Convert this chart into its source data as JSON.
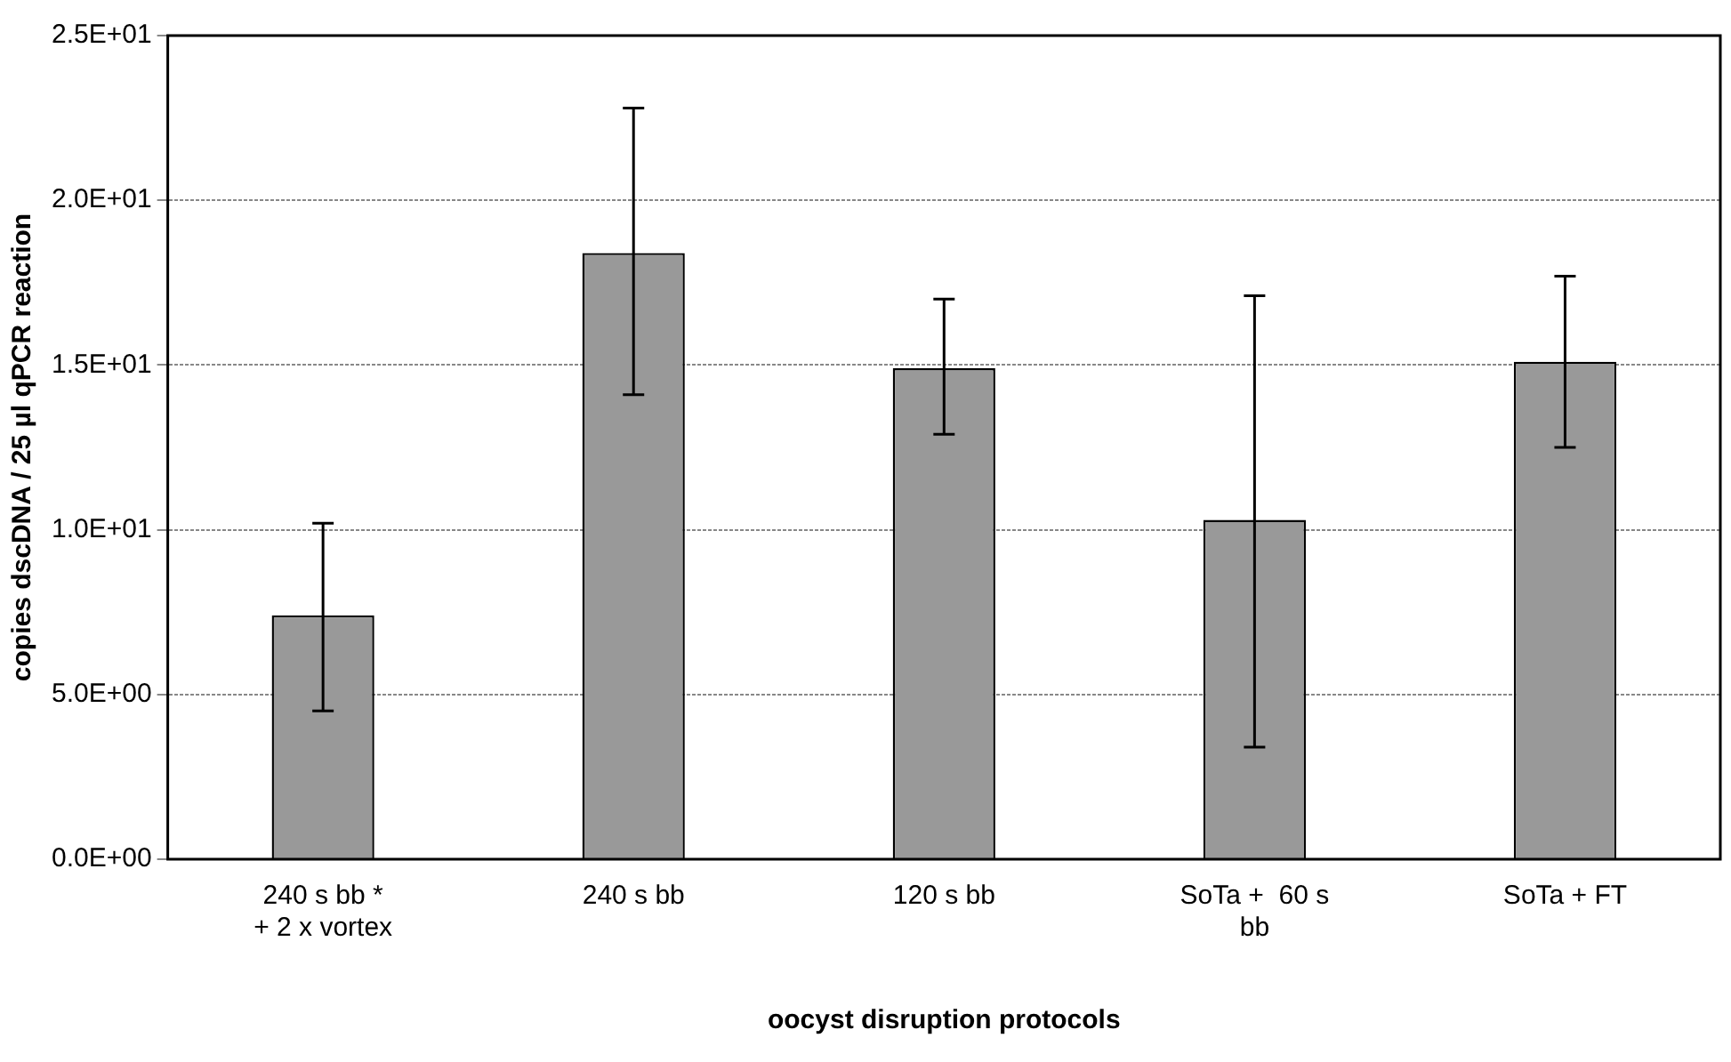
{
  "chart_data": {
    "type": "bar",
    "xlabel": "oocyst disruption protocols",
    "ylabel": "copies dscDNA / 25 µl qPCR reaction",
    "categories": [
      "240 s bb *\n+ 2 x vortex",
      "240 s bb",
      "120 s bb",
      "SoTa +  60 s\nbb",
      "SoTa + FT"
    ],
    "values": [
      7.4,
      18.4,
      14.9,
      10.3,
      15.1
    ],
    "color": "#999999",
    "errors": [
      [
        4.5,
        10.2
      ],
      [
        14.1,
        22.8
      ],
      [
        12.9,
        17.0
      ],
      [
        3.4,
        17.1
      ],
      [
        12.5,
        17.7
      ]
    ],
    "ylim": [
      0,
      25
    ],
    "yticks": [
      {
        "value": 0,
        "label": "0.0E+00"
      },
      {
        "value": 5,
        "label": "5.0E+00"
      },
      {
        "value": 10,
        "label": "1.0E+01"
      },
      {
        "value": 15,
        "label": "1.5E+01"
      },
      {
        "value": 20,
        "label": "2.0E+01"
      },
      {
        "value": 25,
        "label": "2.5E+01"
      }
    ],
    "grid": "y",
    "legend": false
  }
}
